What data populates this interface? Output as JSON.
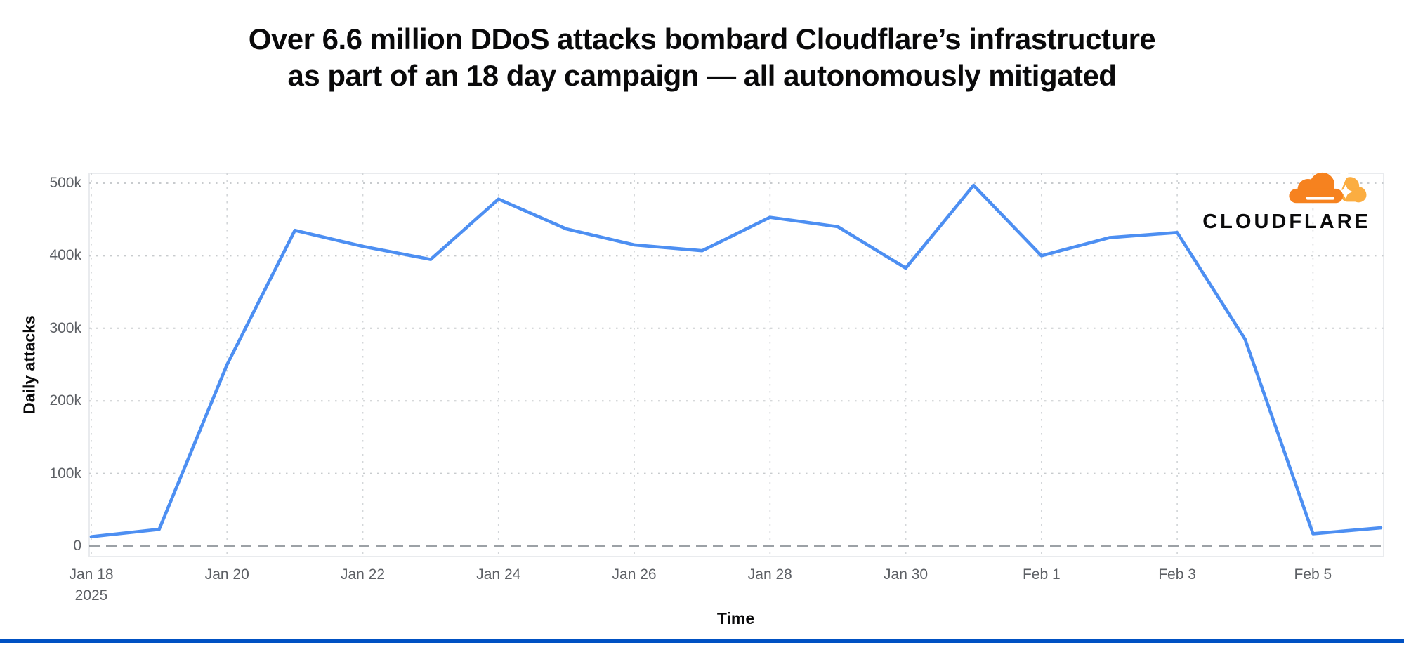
{
  "headline": {
    "line1": "Over 6.6 million DDoS attacks bombard Cloudflare’s infrastructure",
    "line2": "as part of an 18 day campaign — all autonomously mitigated"
  },
  "logo": {
    "wordmark": "CLOUDFLARE",
    "cloud_icon": "cloudflare-cloud-icon",
    "orange": "#F6821F",
    "light_orange": "#FBAD41"
  },
  "colors": {
    "line": "#4D8FF2",
    "grid_dotted": "#C8CBCE",
    "zero_baseline": "#9CA1A6",
    "tick_text": "#5D6065",
    "headline_text": "#0A0A0B",
    "bottom_bar": "#0051C3"
  },
  "chart_data": {
    "type": "line",
    "title": "Over 6.6 million DDoS attacks bombard Cloudflare’s infrastructure as part of an 18 day campaign — all autonomously mitigated",
    "xlabel": "Time",
    "ylabel": "Daily attacks",
    "x": [
      "Jan 18",
      "Jan 19",
      "Jan 20",
      "Jan 21",
      "Jan 22",
      "Jan 23",
      "Jan 24",
      "Jan 25",
      "Jan 26",
      "Jan 27",
      "Jan 28",
      "Jan 29",
      "Jan 30",
      "Jan 31",
      "Feb 1",
      "Feb 2",
      "Feb 3",
      "Feb 4",
      "Feb 5",
      "Feb 6"
    ],
    "values": [
      13000,
      23000,
      250000,
      435000,
      413000,
      395000,
      478000,
      437000,
      415000,
      407000,
      453000,
      440000,
      383000,
      497000,
      400000,
      425000,
      432000,
      285000,
      17000,
      25000
    ],
    "ylim": [
      0,
      500000
    ],
    "yticks": [
      0,
      100000,
      200000,
      300000,
      400000,
      500000
    ],
    "ytick_labels": [
      "0",
      "100k",
      "200k",
      "300k",
      "400k",
      "500k"
    ],
    "xtick_indices": [
      0,
      2,
      4,
      6,
      8,
      10,
      12,
      14,
      16,
      18
    ],
    "xtick_labels": [
      "Jan 18\n2025",
      "Jan 20",
      "Jan 22",
      "Jan 24",
      "Jan 26",
      "Jan 28",
      "Jan 30",
      "Feb 1",
      "Feb 3",
      "Feb 5"
    ],
    "grid": "dotted horizontal and vertical gridlines",
    "zero_baseline_style": "dashed",
    "legend_position": "none"
  }
}
